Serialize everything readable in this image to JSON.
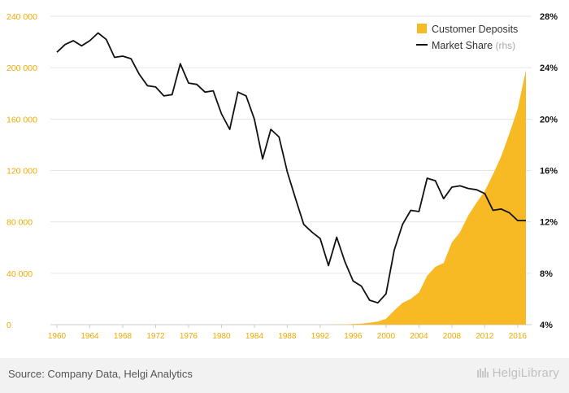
{
  "chart_data": {
    "type": "area",
    "x_ticks": [
      "1960",
      "1964",
      "1968",
      "1972",
      "1976",
      "1980",
      "1984",
      "1988",
      "1992",
      "1996",
      "2000",
      "2004",
      "2008",
      "2012",
      "2016"
    ],
    "y_left_ticks": [
      "0",
      "40 000",
      "80 000",
      "120 000",
      "160 000",
      "200 000",
      "240 000"
    ],
    "y_left_range": [
      0,
      240000
    ],
    "y_right_ticks": [
      "4%",
      "8%",
      "12%",
      "16%",
      "20%",
      "24%",
      "28%"
    ],
    "y_right_range": [
      4,
      28
    ],
    "x_range": [
      1960,
      2017
    ],
    "grid": "horizontal",
    "legend_position": "top-right",
    "series": [
      {
        "name": "Customer Deposits",
        "axis": "left",
        "color": "#f7b924",
        "x": [
          1960,
          1961,
          1962,
          1963,
          1964,
          1965,
          1966,
          1967,
          1968,
          1969,
          1970,
          1971,
          1972,
          1973,
          1974,
          1975,
          1976,
          1977,
          1978,
          1979,
          1980,
          1981,
          1982,
          1983,
          1984,
          1985,
          1986,
          1987,
          1988,
          1989,
          1990,
          1991,
          1992,
          1993,
          1994,
          1995,
          1996,
          1997,
          1998,
          1999,
          2000,
          2001,
          2002,
          2003,
          2004,
          2005,
          2006,
          2007,
          2008,
          2009,
          2010,
          2011,
          2012,
          2013,
          2014,
          2015,
          2016,
          2017
        ],
        "values": [
          0,
          0,
          0,
          0,
          0,
          0,
          0,
          0,
          0,
          0,
          0,
          0,
          0,
          0,
          0,
          0,
          0,
          0,
          0,
          0,
          0,
          0,
          0,
          0,
          0,
          0,
          0,
          0,
          0,
          0,
          0,
          0,
          0,
          0,
          100,
          200,
          500,
          800,
          1500,
          2500,
          4500,
          11000,
          17000,
          20000,
          25000,
          38000,
          45000,
          48000,
          64000,
          72000,
          85000,
          95000,
          104000,
          117000,
          131000,
          149000,
          168000,
          198000
        ]
      },
      {
        "name": "Market Share",
        "name_suffix": "(rhs)",
        "axis": "right",
        "color": "#111111",
        "x": [
          1960,
          1961,
          1962,
          1963,
          1964,
          1965,
          1966,
          1967,
          1968,
          1969,
          1970,
          1971,
          1972,
          1973,
          1974,
          1975,
          1976,
          1977,
          1978,
          1979,
          1980,
          1981,
          1982,
          1983,
          1984,
          1985,
          1986,
          1987,
          1988,
          1989,
          1990,
          1991,
          1992,
          1993,
          1994,
          1995,
          1996,
          1997,
          1998,
          1999,
          2000,
          2001,
          2002,
          2003,
          2004,
          2005,
          2006,
          2007,
          2008,
          2009,
          2010,
          2011,
          2012,
          2013,
          2014,
          2015,
          2016,
          2017
        ],
        "values": [
          25.2,
          25.8,
          26.1,
          25.7,
          26.1,
          26.7,
          26.2,
          24.8,
          24.9,
          24.7,
          23.5,
          22.6,
          22.5,
          21.8,
          21.9,
          24.3,
          22.8,
          22.7,
          22.1,
          22.2,
          20.4,
          19.2,
          22.1,
          21.8,
          20.0,
          16.9,
          19.2,
          18.6,
          15.9,
          13.8,
          11.8,
          11.2,
          10.7,
          8.6,
          10.8,
          8.9,
          7.4,
          7.0,
          5.9,
          5.7,
          6.4,
          9.8,
          11.8,
          12.9,
          12.8,
          15.4,
          15.2,
          13.8,
          14.7,
          14.8,
          14.6,
          14.5,
          14.2,
          12.9,
          13.0,
          12.7,
          12.1,
          12.1
        ]
      }
    ]
  },
  "legend": {
    "deposits_label": "Customer Deposits",
    "share_label": "Market Share",
    "share_suffix": "(rhs)"
  },
  "footer": {
    "source": "Source: Company Data, Helgi Analytics",
    "brand": "HelgiLibrary"
  }
}
